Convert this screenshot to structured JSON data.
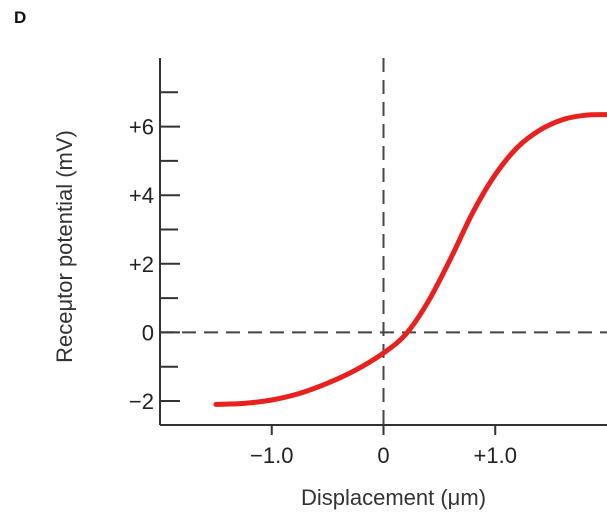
{
  "panel_label": "D",
  "chart_data": {
    "type": "line",
    "xlabel": "Displacement (μm)",
    "ylabel": "Receμtor potential (mV)",
    "xlim": [
      -2.0,
      2.0
    ],
    "ylim": [
      -2.7,
      8.0
    ],
    "x_ticks": [
      {
        "value": -1.0,
        "label": "−1.0"
      },
      {
        "value": 0,
        "label": "0"
      },
      {
        "value": 1.0,
        "label": "+1.0"
      }
    ],
    "y_ticks": [
      {
        "value": -2,
        "label": "−2"
      },
      {
        "value": 0,
        "label": "0"
      },
      {
        "value": 2,
        "label": "+2"
      },
      {
        "value": 4,
        "label": "+4"
      },
      {
        "value": 6,
        "label": "+6"
      }
    ],
    "y_minor_ticks": [
      -1,
      1,
      3,
      5,
      7
    ],
    "reference_lines": [
      {
        "axis": "x",
        "value": 0,
        "style": "dashed"
      },
      {
        "axis": "y",
        "value": 0,
        "style": "dashed"
      }
    ],
    "series": [
      {
        "color": "#e8201e",
        "x": [
          -1.5,
          -1.25,
          -1.0,
          -0.75,
          -0.5,
          -0.25,
          0.0,
          0.2,
          0.4,
          0.6,
          0.8,
          1.0,
          1.2,
          1.4,
          1.6,
          1.8,
          2.0
        ],
        "y": [
          -2.1,
          -2.07,
          -1.97,
          -1.78,
          -1.48,
          -1.1,
          -0.6,
          -0.05,
          0.9,
          2.15,
          3.5,
          4.6,
          5.4,
          5.9,
          6.2,
          6.33,
          6.35
        ]
      }
    ],
    "grid": false,
    "legend": "none"
  }
}
